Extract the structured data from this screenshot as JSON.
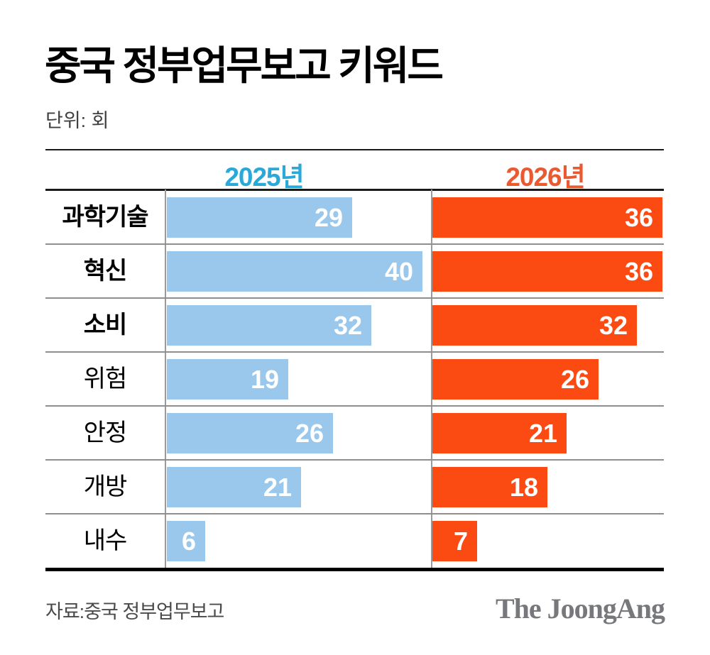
{
  "title": "중국 정부업무보고 키워드",
  "unit_label": "단위: 회",
  "footer": {
    "source": "자료:중국 정부업무보고",
    "logo": "The JoongAng"
  },
  "colors": {
    "bar_2025": "#9ac8ec",
    "bar_2026": "#fb4a12",
    "legend_2025_text": "#2aa9d8",
    "legend_2026_text": "#e95a31",
    "grid_line": "#8e8e8e",
    "value_text": "#ffffff"
  },
  "chart_data": {
    "type": "bar",
    "orientation": "horizontal",
    "title": "중국 정부업무보고 키워드",
    "unit": "회",
    "xlim": [
      0,
      40
    ],
    "grid": true,
    "legend_position": "top",
    "categories": [
      "과학기술",
      "혁신",
      "소비",
      "위험",
      "안정",
      "개방",
      "내수"
    ],
    "category_bold": [
      true,
      true,
      true,
      false,
      false,
      false,
      false
    ],
    "series": [
      {
        "name": "2025년",
        "color": "#9ac8ec",
        "text_color": "#2aa9d8",
        "values": [
          29,
          40,
          32,
          19,
          26,
          21,
          6
        ]
      },
      {
        "name": "2026년",
        "color": "#fb4a12",
        "text_color": "#e95a31",
        "values": [
          36,
          36,
          32,
          26,
          21,
          18,
          7
        ]
      }
    ]
  }
}
